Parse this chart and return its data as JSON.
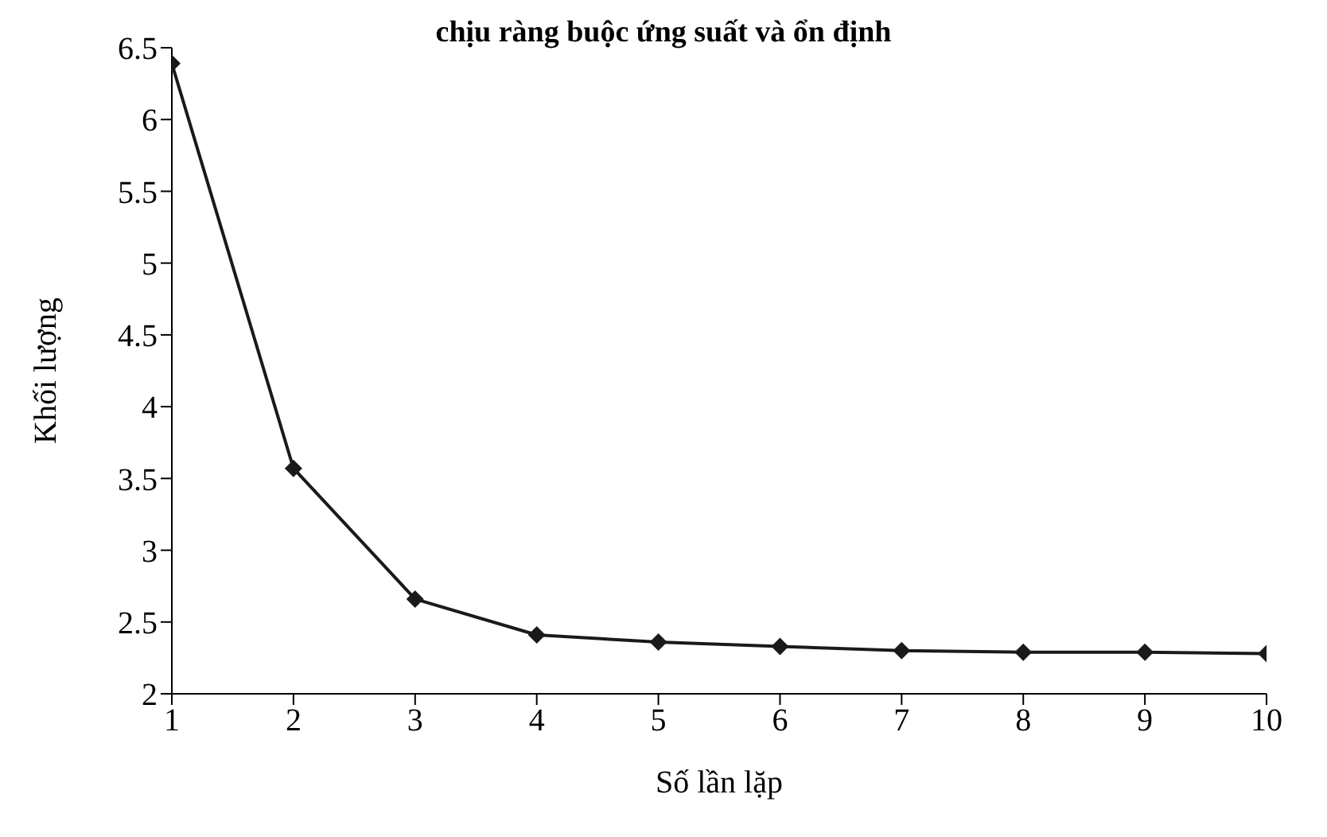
{
  "chart_data": {
    "type": "line",
    "title": "chịu ràng buộc ứng suất và ổn định",
    "xlabel": "Số lần lặp",
    "ylabel": "Khối lượng",
    "x": [
      1,
      2,
      3,
      4,
      5,
      6,
      7,
      8,
      9,
      10
    ],
    "series": [
      {
        "color": "#1a1a1a",
        "values": [
          6.39,
          3.57,
          2.66,
          2.41,
          2.36,
          2.33,
          2.3,
          2.29,
          2.29,
          2.28
        ]
      }
    ],
    "xlim": [
      1,
      10
    ],
    "xticks": [
      1,
      2,
      3,
      4,
      5,
      6,
      7,
      8,
      9,
      10
    ],
    "ylim": [
      2,
      6.5
    ],
    "yticks": [
      2,
      2.5,
      3,
      3.5,
      4,
      4.5,
      5,
      5.5,
      6,
      6.5
    ],
    "grid": false,
    "legend": false,
    "marker": "diamond",
    "line_style": "solid"
  }
}
